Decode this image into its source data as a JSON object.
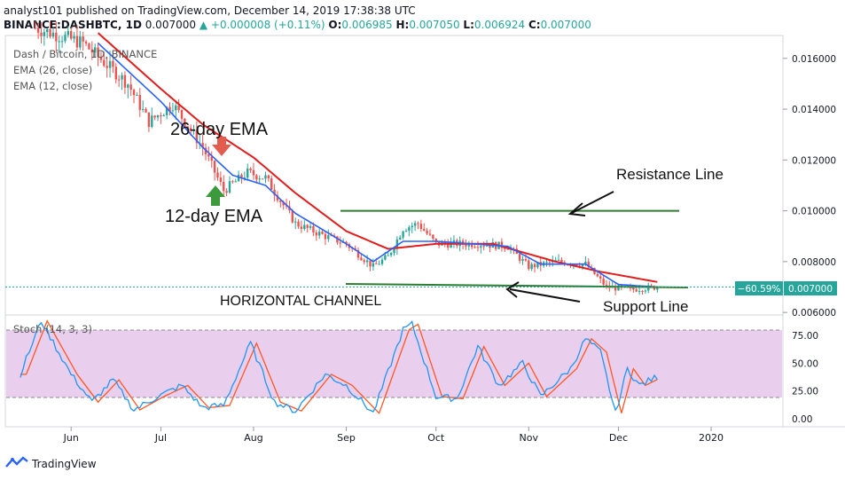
{
  "header": {
    "publisher_line": "analyst101 published on TradingView.com, December 14, 2019 17:38:38 UTC",
    "symbol": "BINANCE:DASHBTC, 1D",
    "close": "0.007000",
    "change": "+0.000008 (+0.11%)",
    "o_label": "O:",
    "o_value": "0.006985",
    "h_label": "H:",
    "h_value": "0.007050",
    "l_label": "L:",
    "l_value": "0.006924",
    "c_label": "C:",
    "c_value": "0.007000"
  },
  "legend": {
    "title": "Dash / Bitcoin, 1D, BINANCE",
    "ema26": "EMA (26, close)",
    "ema12": "EMA (12, close)"
  },
  "annotations": {
    "ema26": "26-day EMA",
    "ema12": "12-day EMA",
    "resistance": "Resistance Line",
    "support": "Support Line",
    "channel": "HORIZONTAL CHANNEL"
  },
  "price_axis": {
    "ticks": [
      "0.016000",
      "0.014000",
      "0.012000",
      "0.010000",
      "0.008000",
      "0.006000"
    ],
    "last_price_label": "0.007000",
    "change_badge": "−60.59%"
  },
  "stoch": {
    "label": "Stoch (14, 3, 3)",
    "ticks": [
      "75.00",
      "50.00",
      "25.00",
      "0.00"
    ]
  },
  "time_axis": [
    "Jun",
    "Jul",
    "Aug",
    "Sep",
    "Oct",
    "Nov",
    "Dec",
    "2020"
  ],
  "footer": {
    "brand": "TradingView"
  },
  "colors": {
    "up": "#26a69a",
    "down": "#ef5350",
    "ema26": "#e31c1c",
    "ema12": "#2962ff",
    "trendline": "#2e7d32",
    "stoch_k": "#2196f3",
    "stoch_d": "#ff5722",
    "stoch_band": "#e1bee7",
    "badge": "#26a69a"
  },
  "chart_data": {
    "type": "candlestick",
    "title": "Dash / Bitcoin, 1D, BINANCE",
    "x_range": [
      "2019-05-10",
      "2020-01-25"
    ],
    "y_range": [
      0.0059,
      0.0169
    ],
    "resistance_level": 0.01,
    "support_level": 0.007,
    "price_path": [
      {
        "date": "2019-05-20",
        "close": 0.0172
      },
      {
        "date": "2019-06-05",
        "close": 0.0166
      },
      {
        "date": "2019-06-20",
        "close": 0.015
      },
      {
        "date": "2019-06-27",
        "close": 0.0135
      },
      {
        "date": "2019-07-05",
        "close": 0.0142
      },
      {
        "date": "2019-07-15",
        "close": 0.0125
      },
      {
        "date": "2019-07-22",
        "close": 0.0108
      },
      {
        "date": "2019-07-30",
        "close": 0.0115
      },
      {
        "date": "2019-08-05",
        "close": 0.0113
      },
      {
        "date": "2019-08-15",
        "close": 0.0095
      },
      {
        "date": "2019-08-25",
        "close": 0.009
      },
      {
        "date": "2019-09-01",
        "close": 0.0087
      },
      {
        "date": "2019-09-10",
        "close": 0.0078
      },
      {
        "date": "2019-09-15",
        "close": 0.0082
      },
      {
        "date": "2019-09-20",
        "close": 0.0093
      },
      {
        "date": "2019-09-25",
        "close": 0.0095
      },
      {
        "date": "2019-10-01",
        "close": 0.0087
      },
      {
        "date": "2019-10-15",
        "close": 0.0087
      },
      {
        "date": "2019-10-25",
        "close": 0.0086
      },
      {
        "date": "2019-11-01",
        "close": 0.0078
      },
      {
        "date": "2019-11-10",
        "close": 0.008
      },
      {
        "date": "2019-11-20",
        "close": 0.0079
      },
      {
        "date": "2019-11-27",
        "close": 0.007
      },
      {
        "date": "2019-12-05",
        "close": 0.0069
      },
      {
        "date": "2019-12-14",
        "close": 0.007
      }
    ],
    "ema26_path": [
      {
        "date": "2019-06-10",
        "value": 0.017
      },
      {
        "date": "2019-07-01",
        "value": 0.0148
      },
      {
        "date": "2019-07-15",
        "value": 0.0134
      },
      {
        "date": "2019-08-01",
        "value": 0.0121
      },
      {
        "date": "2019-08-15",
        "value": 0.0107
      },
      {
        "date": "2019-09-01",
        "value": 0.0092
      },
      {
        "date": "2019-09-15",
        "value": 0.0085
      },
      {
        "date": "2019-10-01",
        "value": 0.0087
      },
      {
        "date": "2019-10-20",
        "value": 0.0087
      },
      {
        "date": "2019-11-10",
        "value": 0.008
      },
      {
        "date": "2019-11-25",
        "value": 0.0076
      },
      {
        "date": "2019-12-14",
        "value": 0.0072
      }
    ],
    "ema12_path": [
      {
        "date": "2019-06-10",
        "value": 0.0166
      },
      {
        "date": "2019-07-01",
        "value": 0.0143
      },
      {
        "date": "2019-07-15",
        "value": 0.0125
      },
      {
        "date": "2019-07-25",
        "value": 0.0114
      },
      {
        "date": "2019-08-05",
        "value": 0.011
      },
      {
        "date": "2019-08-15",
        "value": 0.0099
      },
      {
        "date": "2019-09-01",
        "value": 0.0087
      },
      {
        "date": "2019-09-10",
        "value": 0.008
      },
      {
        "date": "2019-09-20",
        "value": 0.0088
      },
      {
        "date": "2019-10-01",
        "value": 0.0088
      },
      {
        "date": "2019-10-25",
        "value": 0.0086
      },
      {
        "date": "2019-11-05",
        "value": 0.0079
      },
      {
        "date": "2019-11-20",
        "value": 0.0079
      },
      {
        "date": "2019-12-01",
        "value": 0.0071
      },
      {
        "date": "2019-12-14",
        "value": 0.007
      }
    ],
    "stoch_k_path": [
      {
        "date": "2019-05-15",
        "value": 40
      },
      {
        "date": "2019-05-22",
        "value": 88
      },
      {
        "date": "2019-06-01",
        "value": 40
      },
      {
        "date": "2019-06-08",
        "value": 15
      },
      {
        "date": "2019-06-15",
        "value": 35
      },
      {
        "date": "2019-06-22",
        "value": 8
      },
      {
        "date": "2019-06-30",
        "value": 20
      },
      {
        "date": "2019-07-08",
        "value": 30
      },
      {
        "date": "2019-07-15",
        "value": 10
      },
      {
        "date": "2019-07-22",
        "value": 12
      },
      {
        "date": "2019-07-31",
        "value": 68
      },
      {
        "date": "2019-08-08",
        "value": 15
      },
      {
        "date": "2019-08-15",
        "value": 7
      },
      {
        "date": "2019-08-25",
        "value": 40
      },
      {
        "date": "2019-09-01",
        "value": 30
      },
      {
        "date": "2019-09-10",
        "value": 5
      },
      {
        "date": "2019-09-20",
        "value": 80
      },
      {
        "date": "2019-09-23",
        "value": 85
      },
      {
        "date": "2019-10-01",
        "value": 20
      },
      {
        "date": "2019-10-08",
        "value": 18
      },
      {
        "date": "2019-10-15",
        "value": 65
      },
      {
        "date": "2019-10-22",
        "value": 30
      },
      {
        "date": "2019-10-30",
        "value": 50
      },
      {
        "date": "2019-11-05",
        "value": 20
      },
      {
        "date": "2019-11-15",
        "value": 45
      },
      {
        "date": "2019-11-20",
        "value": 72
      },
      {
        "date": "2019-11-25",
        "value": 60
      },
      {
        "date": "2019-11-30",
        "value": 5
      },
      {
        "date": "2019-12-04",
        "value": 45
      },
      {
        "date": "2019-12-08",
        "value": 30
      },
      {
        "date": "2019-12-14",
        "value": 38
      }
    ]
  }
}
